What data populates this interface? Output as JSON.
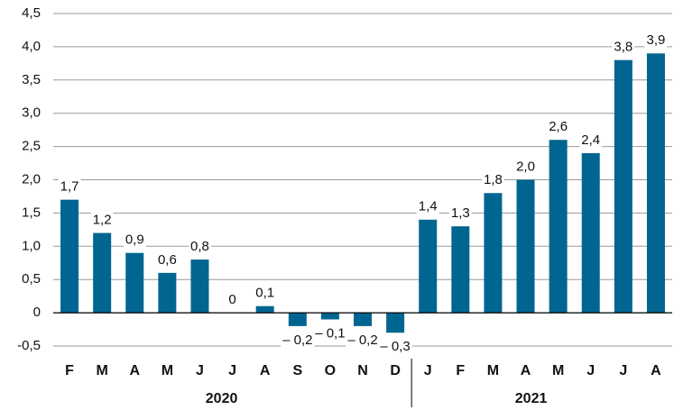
{
  "chart_data": {
    "type": "bar",
    "categories": [
      "F",
      "M",
      "A",
      "M",
      "J",
      "J",
      "A",
      "S",
      "O",
      "N",
      "D",
      "J",
      "F",
      "M",
      "A",
      "M",
      "J",
      "J",
      "A"
    ],
    "values": [
      1.7,
      1.2,
      0.9,
      0.6,
      0.8,
      0,
      0.1,
      -0.2,
      -0.1,
      -0.2,
      -0.3,
      1.4,
      1.3,
      1.8,
      2.0,
      2.6,
      2.4,
      3.8,
      3.9
    ],
    "value_labels": [
      "1,7",
      "1,2",
      "0,9",
      "0,6",
      "0,8",
      "0",
      "0,1",
      "– 0,2",
      "– 0,1",
      "– 0,2",
      "– 0,3",
      "1,4",
      "1,3",
      "1,8",
      "2,0",
      "2,6",
      "2,4",
      "3,8",
      "3,9"
    ],
    "groups": [
      {
        "label": "2020",
        "size": 11
      },
      {
        "label": "2021",
        "size": 8
      }
    ],
    "color": "#006591",
    "ylim": [
      -0.5,
      4.5
    ],
    "yticks": [
      {
        "value": -0.5,
        "label": "-0,5"
      },
      0,
      {
        "value": 0.5,
        "label": "0,5"
      },
      {
        "value": 1.0,
        "label": "1,0"
      },
      {
        "value": 1.5,
        "label": "1,5"
      },
      {
        "value": 2.0,
        "label": "2,0"
      },
      {
        "value": 2.5,
        "label": "2,5"
      },
      {
        "value": 3.0,
        "label": "3,0"
      },
      {
        "value": 3.5,
        "label": "3,5"
      },
      {
        "value": 4.0,
        "label": "4,0"
      },
      {
        "value": 4.5,
        "label": "4,5"
      }
    ],
    "grid": true
  }
}
